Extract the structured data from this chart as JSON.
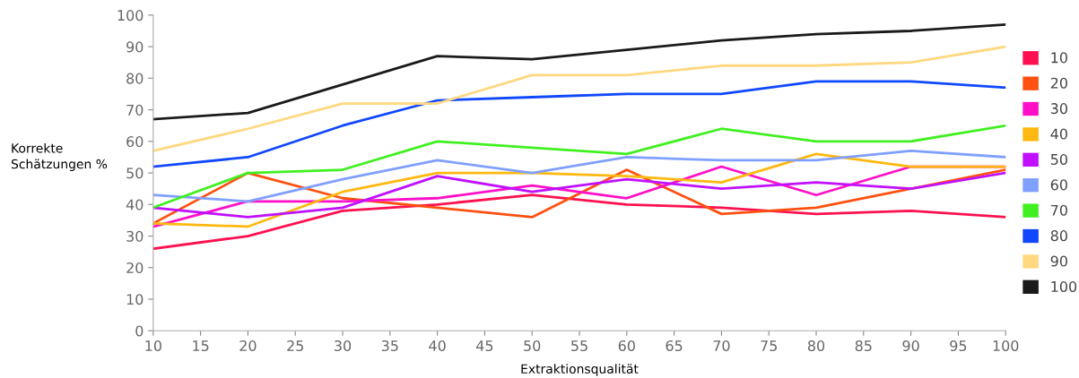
{
  "chart_data": {
    "type": "line",
    "xlabel": "Extraktionsqualität",
    "ylabel": "Korrekte\nSchätzungen %",
    "x": [
      10,
      20,
      30,
      40,
      50,
      60,
      70,
      80,
      90,
      100
    ],
    "xlim": [
      10,
      100
    ],
    "xticks": [
      10,
      15,
      20,
      25,
      30,
      35,
      40,
      45,
      50,
      55,
      60,
      65,
      70,
      75,
      80,
      85,
      90,
      95,
      100
    ],
    "ylim": [
      0,
      100
    ],
    "yticks": [
      0,
      10,
      20,
      30,
      40,
      50,
      60,
      70,
      80,
      90,
      100
    ],
    "grid": false,
    "legend": "right",
    "marker": "none",
    "line_style": "solid",
    "series": [
      {
        "name": "10",
        "color": "#ff1050",
        "values": [
          26,
          30,
          38,
          40,
          43,
          40,
          39,
          37,
          38,
          36
        ]
      },
      {
        "name": "20",
        "color": "#ff5010",
        "values": [
          34,
          50,
          42,
          39,
          36,
          51,
          37,
          39,
          45,
          51
        ]
      },
      {
        "name": "30",
        "color": "#ff10c8",
        "values": [
          33,
          41,
          41,
          42,
          46,
          42,
          52,
          43,
          52,
          52
        ]
      },
      {
        "name": "40",
        "color": "#ffb810",
        "values": [
          34,
          33,
          44,
          50,
          50,
          49,
          47,
          56,
          52,
          52
        ]
      },
      {
        "name": "50",
        "color": "#c010ff",
        "values": [
          39,
          36,
          39,
          49,
          44,
          48,
          45,
          47,
          45,
          50
        ]
      },
      {
        "name": "60",
        "color": "#80a0ff",
        "values": [
          43,
          41,
          48,
          54,
          50,
          55,
          54,
          54,
          57,
          55
        ]
      },
      {
        "name": "70",
        "color": "#40f020",
        "values": [
          39,
          50,
          51,
          60,
          58,
          56,
          64,
          60,
          60,
          65
        ]
      },
      {
        "name": "80",
        "color": "#1048ff",
        "values": [
          52,
          55,
          65,
          73,
          74,
          75,
          75,
          79,
          79,
          77
        ]
      },
      {
        "name": "90",
        "color": "#ffd880",
        "values": [
          57,
          64,
          72,
          72,
          81,
          81,
          84,
          84,
          85,
          90
        ]
      },
      {
        "name": "100",
        "color": "#1a1a1a",
        "values": [
          67,
          69,
          78,
          87,
          86,
          89,
          92,
          94,
          95,
          97
        ]
      }
    ]
  }
}
